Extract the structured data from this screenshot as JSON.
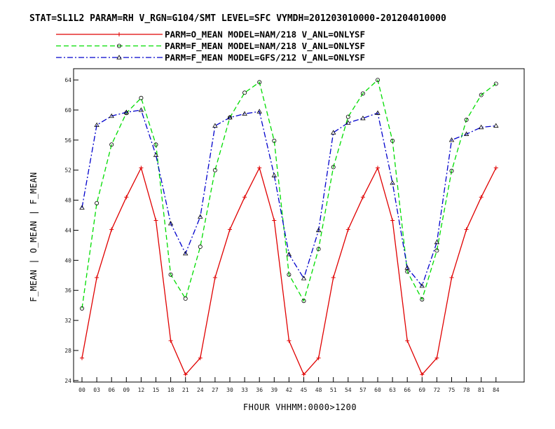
{
  "title": "STAT=SL1L2 PARAM=RH V_RGN=G104/SMT LEVEL=SFC VYMDH=201203010000-201204010000",
  "chart_data": {
    "type": "line",
    "title": "STAT=SL1L2 PARAM=RH V_RGN=G104/SMT LEVEL=SFC VYMDH=201203010000-201204010000",
    "xlabel": "FHOUR VHHMM:0000>1200",
    "ylabel": "F_MEAN | O_MEAN | F_MEAN",
    "categories": [
      "00",
      "03",
      "06",
      "09",
      "12",
      "15",
      "18",
      "21",
      "24",
      "27",
      "30",
      "33",
      "36",
      "39",
      "42",
      "45",
      "48",
      "51",
      "54",
      "57",
      "60",
      "63",
      "66",
      "69",
      "72",
      "75",
      "78",
      "81",
      "84"
    ],
    "yticks": [
      24,
      28,
      32,
      36,
      40,
      44,
      48,
      52,
      56,
      60,
      64
    ],
    "ylim": [
      23.8,
      65.5
    ],
    "grid": false,
    "legend_position": "top",
    "series": [
      {
        "name": "PARM=O_MEAN MODEL=NAM/218 V_ANL=ONLYSF",
        "color": "#e00000",
        "dash": "solid",
        "marker": "plus",
        "values": [
          27.0,
          37.7,
          44.1,
          48.4,
          52.3,
          45.3,
          29.3,
          24.8,
          27.0,
          37.7,
          44.1,
          48.4,
          52.3,
          45.3,
          29.3,
          24.8,
          27.0,
          37.7,
          44.1,
          48.4,
          52.3,
          45.3,
          29.3,
          24.8,
          27.0,
          37.7,
          44.1,
          48.4,
          52.3
        ]
      },
      {
        "name": "PARM=F_MEAN MODEL=NAM/218 V_ANL=ONLYSF",
        "color": "#00dd00",
        "dash": "dashed",
        "marker": "circle",
        "values": [
          33.6,
          47.6,
          55.4,
          59.6,
          61.6,
          55.4,
          38.1,
          34.9,
          41.8,
          52.0,
          59.0,
          62.3,
          63.7,
          55.9,
          38.1,
          34.6,
          41.5,
          52.4,
          59.1,
          62.2,
          64.0,
          55.9,
          38.5,
          34.8,
          41.3,
          51.9,
          58.7,
          62.0,
          63.5
        ]
      },
      {
        "name": "PARM=F_MEAN MODEL=GFS/212 V_ANL=ONLYSF",
        "color": "#0000cc",
        "dash": "dashdot",
        "marker": "triangle",
        "values": [
          47.0,
          58.0,
          59.2,
          59.7,
          60.0,
          54.0,
          44.9,
          40.9,
          45.8,
          57.9,
          59.0,
          59.5,
          59.8,
          51.3,
          40.8,
          37.6,
          44.0,
          57.0,
          58.3,
          58.9,
          59.6,
          50.3,
          39.0,
          36.6,
          42.4,
          56.0,
          56.8,
          57.7,
          57.9
        ]
      }
    ]
  }
}
